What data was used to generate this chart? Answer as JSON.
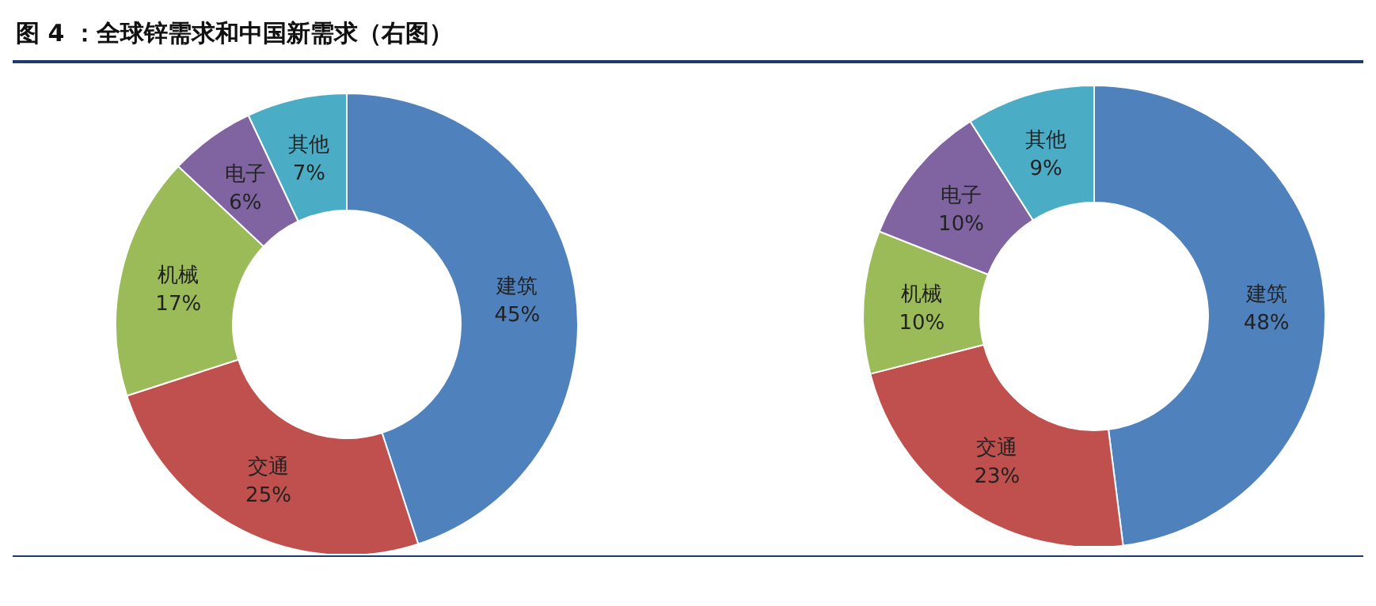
{
  "chart_data": [
    {
      "type": "donut",
      "title": "图 4 ：全球锌需求和中国新需求（右图）",
      "categories": [
        "建筑",
        "交通",
        "机械",
        "电子",
        "其他"
      ],
      "values": [
        45,
        25,
        17,
        6,
        7
      ],
      "value_labels": [
        "45%",
        "25%",
        "17%",
        "6%",
        "7%"
      ],
      "colors": [
        "#4f81bd",
        "#c0504d",
        "#9bbb59",
        "#8064a2",
        "#4bacc6"
      ]
    },
    {
      "type": "donut",
      "categories": [
        "建筑",
        "交通",
        "机械",
        "电子",
        "其他"
      ],
      "values": [
        48,
        23,
        10,
        10,
        9
      ],
      "value_labels": [
        "48%",
        "23%",
        "10%",
        "10%",
        "9%"
      ],
      "colors": [
        "#4f81bd",
        "#c0504d",
        "#9bbb59",
        "#8064a2",
        "#4bacc6"
      ]
    }
  ]
}
